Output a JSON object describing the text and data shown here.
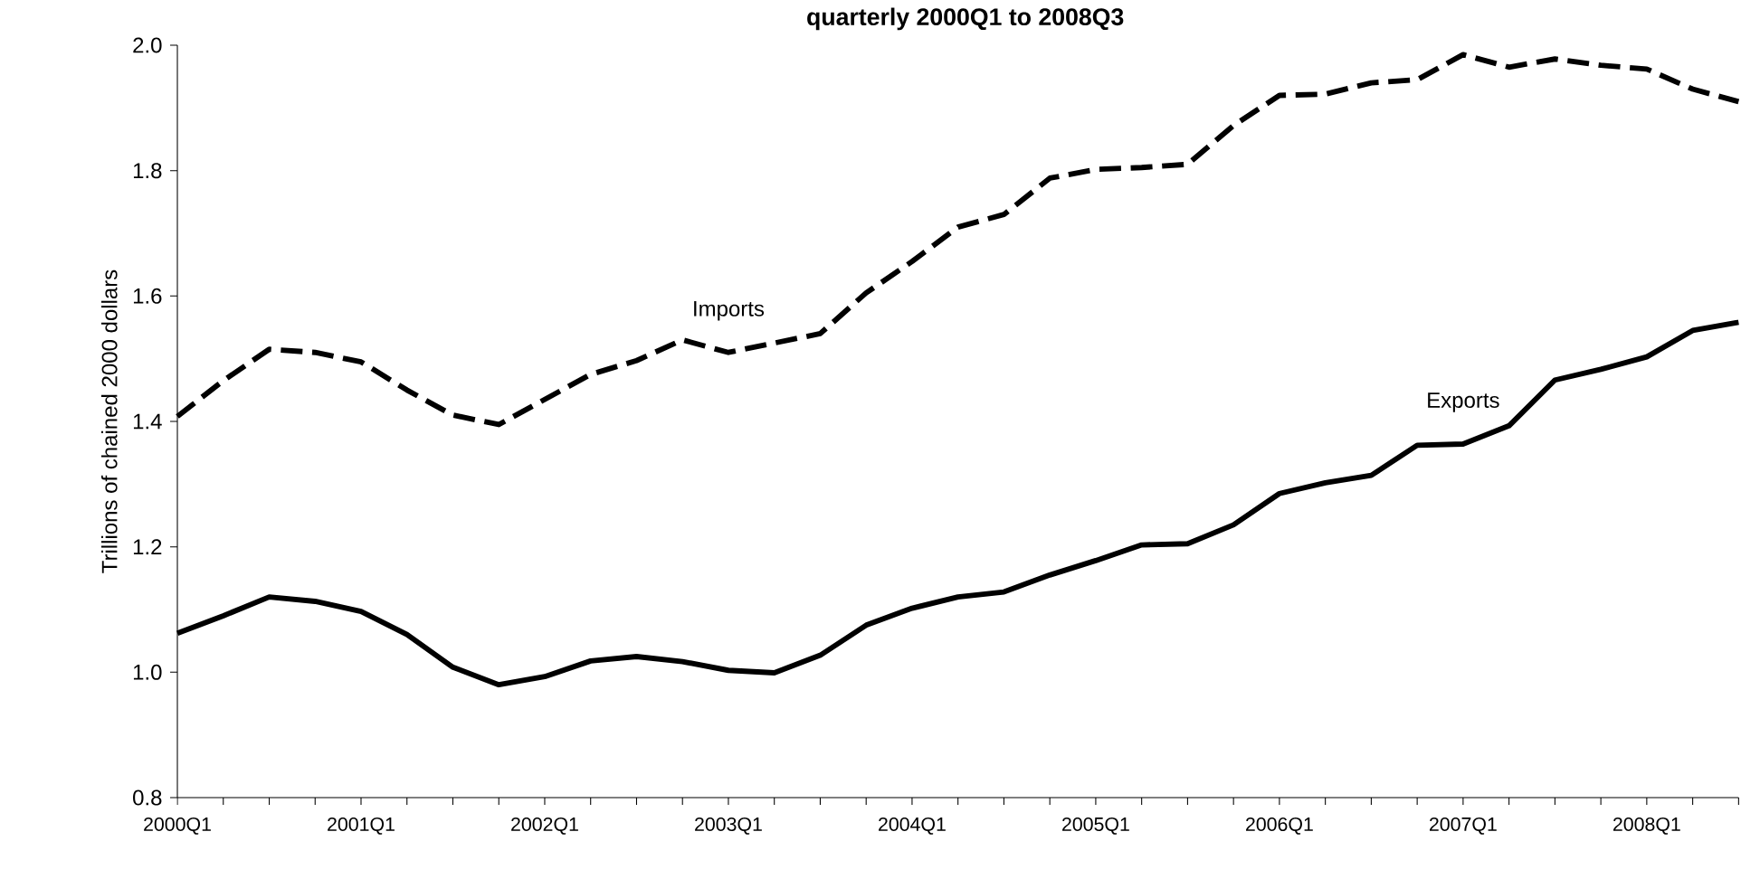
{
  "chart_data": {
    "type": "line",
    "title": "quarterly 2000Q1 to 2008Q3",
    "ylabel": "Trillions of chained 2000 dollars",
    "categories": [
      "2000Q1",
      null,
      null,
      null,
      "2001Q1",
      null,
      null,
      null,
      "2002Q1",
      null,
      null,
      null,
      "2003Q1",
      null,
      null,
      null,
      "2004Q1",
      null,
      null,
      null,
      "2005Q1",
      null,
      null,
      null,
      "2006Q1",
      null,
      null,
      null,
      "2007Q1",
      null,
      null,
      null,
      "2008Q1",
      null,
      null
    ],
    "series": [
      {
        "name": "Imports",
        "color": "#000000",
        "line_style": "dashed",
        "values": [
          1.408,
          1.465,
          1.515,
          1.51,
          1.495,
          1.45,
          1.41,
          1.395,
          1.435,
          1.475,
          1.497,
          1.53,
          1.51,
          1.525,
          1.54,
          1.605,
          1.655,
          1.71,
          1.73,
          1.788,
          1.802,
          1.805,
          1.81,
          1.872,
          1.92,
          1.922,
          1.94,
          1.945,
          1.985,
          1.965,
          1.978,
          1.968,
          1.962,
          1.93,
          1.91
        ]
      },
      {
        "name": "Exports",
        "color": "#000000",
        "line_style": "solid",
        "values": [
          1.062,
          1.09,
          1.12,
          1.113,
          1.097,
          1.06,
          1.008,
          0.98,
          0.993,
          1.018,
          1.025,
          1.017,
          1.003,
          0.999,
          1.027,
          1.075,
          1.102,
          1.12,
          1.128,
          1.155,
          1.178,
          1.203,
          1.205,
          1.235,
          1.285,
          1.302,
          1.314,
          1.362,
          1.364,
          1.393,
          1.466,
          1.483,
          1.503,
          1.545,
          1.558
        ]
      }
    ],
    "ylim": [
      0.8,
      2.0
    ],
    "yticks": [
      {
        "value": 0.8,
        "label": "0.8"
      },
      {
        "value": 1.0,
        "label": "1.0"
      },
      {
        "value": 1.2,
        "label": "1.2"
      },
      {
        "value": 1.4,
        "label": "1.4"
      },
      {
        "value": 1.6,
        "label": "1.6"
      },
      {
        "value": 1.8,
        "label": "1.8"
      },
      {
        "value": 2.0,
        "label": "2.0"
      }
    ],
    "grid": false,
    "marker": "none"
  }
}
